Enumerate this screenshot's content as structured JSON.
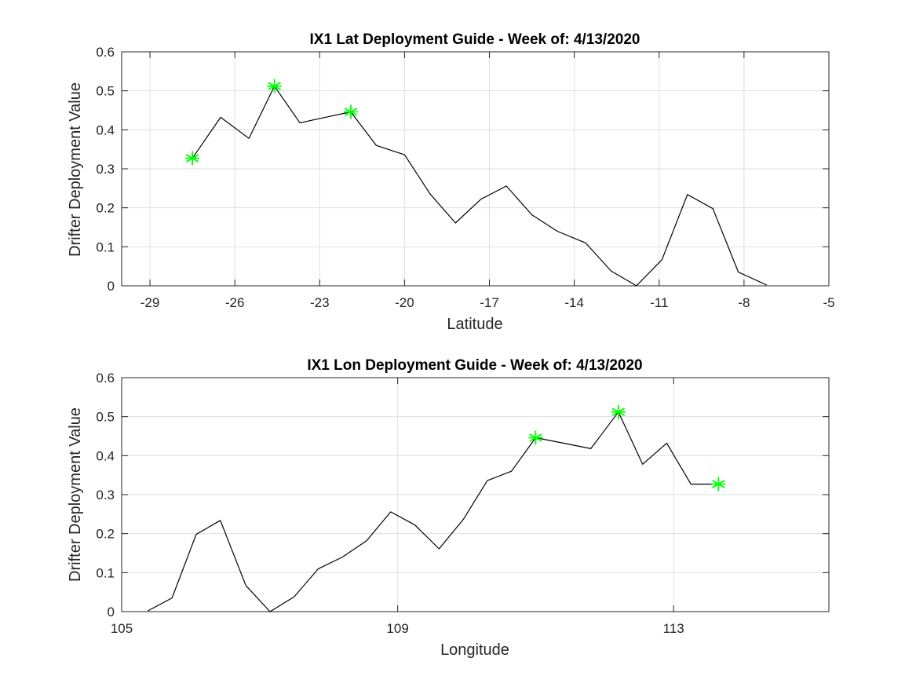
{
  "chart_data": [
    {
      "type": "line",
      "title": "IX1 Lat Deployment Guide - Week of: 4/13/2020",
      "xlabel": "Latitude",
      "ylabel": "Drifter Deployment Value",
      "xlim": [
        -30,
        -5
      ],
      "ylim": [
        0,
        0.6
      ],
      "xticks": [
        -29,
        -26,
        -23,
        -20,
        -17,
        -14,
        -11,
        -8,
        -5
      ],
      "yticks": [
        0,
        0.1,
        0.2,
        0.3,
        0.4,
        0.5,
        0.6
      ],
      "grid": true,
      "line_color": "#000000",
      "marker_color": "#00ff00",
      "series": [
        {
          "x": [
            -27.5,
            -26.5,
            -25.5,
            -24.6,
            -23.7,
            -22.8,
            -21.9,
            -21.0,
            -20.0,
            -19.1,
            -18.2,
            -17.3,
            -16.4,
            -15.5,
            -14.6,
            -13.6,
            -12.7,
            -11.8,
            -10.9,
            -10.0,
            -9.1,
            -8.2,
            -7.2
          ],
          "y": [
            0.327,
            0.432,
            0.378,
            0.512,
            0.418,
            0.432,
            0.446,
            0.36,
            0.336,
            0.236,
            0.161,
            0.222,
            0.256,
            0.182,
            0.14,
            0.11,
            0.038,
            0.0,
            0.067,
            0.234,
            0.198,
            0.035,
            0.002
          ]
        }
      ],
      "highlighted_points": [
        {
          "x": -27.5,
          "y": 0.327
        },
        {
          "x": -24.6,
          "y": 0.512
        },
        {
          "x": -21.9,
          "y": 0.446
        }
      ]
    },
    {
      "type": "line",
      "title": "IX1 Lon Deployment Guide - Week of: 4/13/2020",
      "xlabel": "Longitude",
      "ylabel": "Drifter Deployment Value",
      "xlim": [
        105,
        115.25
      ],
      "ylim": [
        0,
        0.6
      ],
      "xticks": [
        105,
        109,
        113
      ],
      "yticks": [
        0,
        0.1,
        0.2,
        0.3,
        0.4,
        0.5,
        0.6
      ],
      "grid": true,
      "line_color": "#000000",
      "marker_color": "#00ff00",
      "series": [
        {
          "x": [
            105.38,
            105.73,
            106.08,
            106.43,
            106.8,
            107.15,
            107.5,
            107.85,
            108.2,
            108.55,
            108.9,
            109.25,
            109.6,
            109.95,
            110.3,
            110.65,
            111.0,
            111.4,
            111.8,
            112.2,
            112.55,
            112.9,
            113.25,
            113.65
          ],
          "y": [
            0.002,
            0.035,
            0.198,
            0.234,
            0.067,
            0.0,
            0.038,
            0.11,
            0.14,
            0.182,
            0.256,
            0.222,
            0.161,
            0.236,
            0.336,
            0.36,
            0.446,
            0.432,
            0.418,
            0.512,
            0.378,
            0.432,
            0.327,
            0.327
          ]
        }
      ],
      "highlighted_points": [
        {
          "x": 111.0,
          "y": 0.446
        },
        {
          "x": 112.2,
          "y": 0.512
        },
        {
          "x": 113.65,
          "y": 0.327
        }
      ]
    }
  ]
}
